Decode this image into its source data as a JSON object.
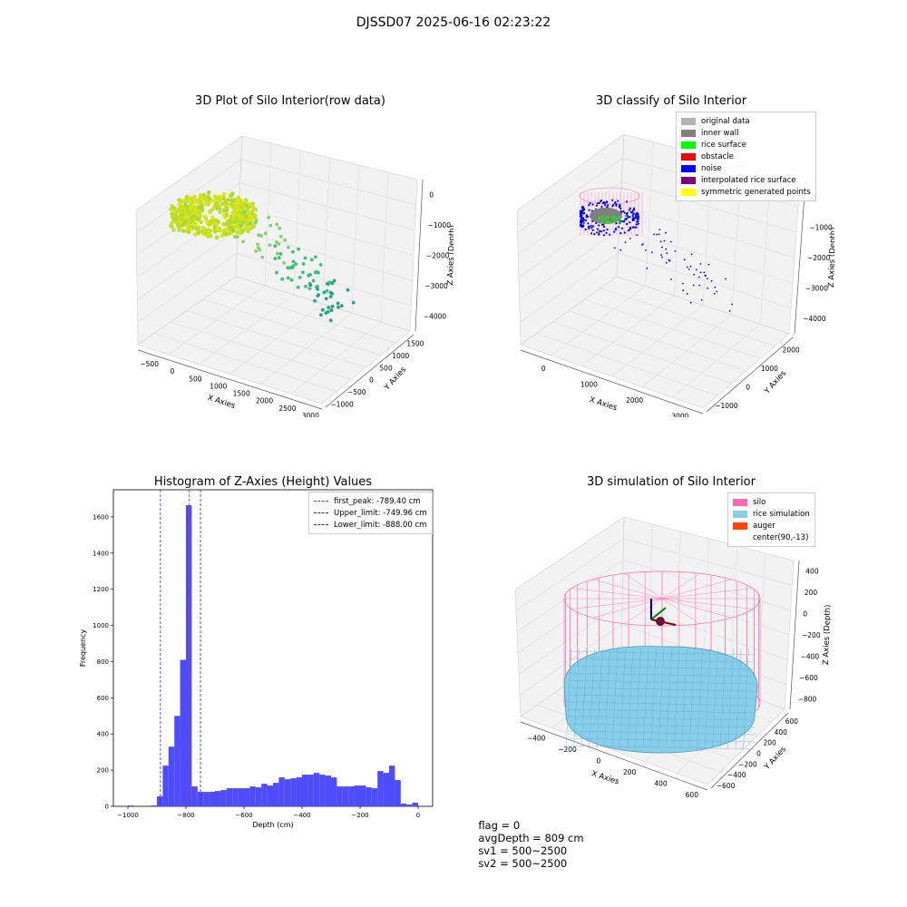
{
  "suptitle": "DJSSD07 2025-06-16 02:23:22",
  "colors": {
    "hist_bar": "#4d4dff",
    "first_peak": "#e03030",
    "limits": "#2b2bbf",
    "silo": "#ff69b4",
    "rice": "#87ceeb",
    "auger": "#ff4500"
  },
  "panels": {
    "raw": {
      "title": "3D Plot of Silo Interior(row data)",
      "xlabel": "X Axies",
      "ylabel": "Y Axies",
      "zlabel": "Z Axies (Depth)",
      "xticks": [
        "−500",
        "0",
        "500",
        "1000",
        "1500",
        "2000",
        "2500",
        "3000"
      ],
      "yticks": [
        "−1000",
        "−500",
        "0",
        "500",
        "1000",
        "1500"
      ],
      "zticks": [
        "0",
        "−1000",
        "−2000",
        "−3000",
        "−4000"
      ]
    },
    "classify": {
      "title": "3D classify of Silo Interior",
      "xlabel": "X Axies",
      "ylabel": "Y Axies",
      "zlabel": "Z Axies (Depth)",
      "xticks": [
        "0",
        "1000",
        "2000",
        "3000"
      ],
      "yticks": [
        "−1000",
        "0",
        "1000",
        "2000"
      ],
      "zticks": [
        "0",
        "−1000",
        "−2000",
        "−3000",
        "−4000"
      ],
      "legend": [
        {
          "label": "original data",
          "color": "#b3b3b3"
        },
        {
          "label": "inner wall",
          "color": "#808080"
        },
        {
          "label": "rice surface",
          "color": "#00ff00"
        },
        {
          "label": "obstacle",
          "color": "#ff0000"
        },
        {
          "label": "noise",
          "color": "#0000ff"
        },
        {
          "label": "interpolated rice surface",
          "color": "#800080"
        },
        {
          "label": "symmetric generated points",
          "color": "#ffff00"
        }
      ]
    },
    "histogram": {
      "title": "Histogram of Z-Axies (Height) Values",
      "xlabel": "Depth (cm)",
      "ylabel": "Frequency",
      "legend": [
        {
          "label": "first_peak: -789.40 cm",
          "color": "#e03030"
        },
        {
          "label": "Upper_limit: -749.96 cm",
          "color": "#2b2bbf"
        },
        {
          "label": "Lower_limit: -888.00 cm",
          "color": "#2b2bbf"
        }
      ]
    },
    "simulation": {
      "title": "3D simulation of Silo Interior",
      "xlabel": "X Axies",
      "ylabel": "Y Axies",
      "zlabel": "Z Axies (Depth)",
      "xticks": [
        "−400",
        "−200",
        "0",
        "200",
        "400",
        "600"
      ],
      "yticks": [
        "−600",
        "−400",
        "−200",
        "0",
        "200",
        "400",
        "600"
      ],
      "zticks": [
        "400",
        "200",
        "0",
        "−200",
        "−400",
        "−600",
        "−800"
      ],
      "legend": [
        {
          "label": "silo",
          "color": "#ff69b4"
        },
        {
          "label": "rice simulation",
          "color": "#87ceeb"
        },
        {
          "label": "auger",
          "color": "#ff4500"
        },
        {
          "label": "center(90,-13)",
          "color": ""
        }
      ]
    }
  },
  "status": {
    "flag": "flag = 0",
    "avg": "avgDepth = 809 cm",
    "sv1": "sv1 = 500~2500",
    "sv2": "sv2 = 500~2500"
  },
  "chart_data": {
    "type": "bar",
    "title": "Histogram of Z-Axies (Height) Values",
    "xlabel": "Depth (cm)",
    "ylabel": "Frequency",
    "xlim": [
      -1050,
      50
    ],
    "ylim": [
      0,
      1750
    ],
    "xticks": [
      -1000,
      -800,
      -600,
      -400,
      -200,
      0
    ],
    "yticks": [
      0,
      200,
      400,
      600,
      800,
      1000,
      1200,
      1400,
      1600
    ],
    "bin_width": 20,
    "bins": [
      {
        "x": -990,
        "value": 5
      },
      {
        "x": -910,
        "value": 5
      },
      {
        "x": -890,
        "value": 55
      },
      {
        "x": -870,
        "value": 225
      },
      {
        "x": -850,
        "value": 330
      },
      {
        "x": -830,
        "value": 500
      },
      {
        "x": -810,
        "value": 810
      },
      {
        "x": -790,
        "value": 1665
      },
      {
        "x": -770,
        "value": 110
      },
      {
        "x": -750,
        "value": 80
      },
      {
        "x": -730,
        "value": 80
      },
      {
        "x": -710,
        "value": 80
      },
      {
        "x": -690,
        "value": 85
      },
      {
        "x": -670,
        "value": 90
      },
      {
        "x": -650,
        "value": 100
      },
      {
        "x": -630,
        "value": 100
      },
      {
        "x": -610,
        "value": 100
      },
      {
        "x": -590,
        "value": 100
      },
      {
        "x": -570,
        "value": 110
      },
      {
        "x": -550,
        "value": 105
      },
      {
        "x": -530,
        "value": 125
      },
      {
        "x": -510,
        "value": 115
      },
      {
        "x": -490,
        "value": 130
      },
      {
        "x": -470,
        "value": 160
      },
      {
        "x": -450,
        "value": 150
      },
      {
        "x": -430,
        "value": 155
      },
      {
        "x": -410,
        "value": 160
      },
      {
        "x": -390,
        "value": 175
      },
      {
        "x": -370,
        "value": 175
      },
      {
        "x": -350,
        "value": 185
      },
      {
        "x": -330,
        "value": 175
      },
      {
        "x": -310,
        "value": 170
      },
      {
        "x": -290,
        "value": 160
      },
      {
        "x": -270,
        "value": 110
      },
      {
        "x": -250,
        "value": 110
      },
      {
        "x": -230,
        "value": 110
      },
      {
        "x": -210,
        "value": 115
      },
      {
        "x": -190,
        "value": 115
      },
      {
        "x": -170,
        "value": 105
      },
      {
        "x": -150,
        "value": 100
      },
      {
        "x": -130,
        "value": 195
      },
      {
        "x": -110,
        "value": 185
      },
      {
        "x": -90,
        "value": 225
      },
      {
        "x": -70,
        "value": 145
      },
      {
        "x": -50,
        "value": 15
      },
      {
        "x": -30,
        "value": 10
      },
      {
        "x": -10,
        "value": 20
      }
    ],
    "vlines": [
      {
        "x": -789.4,
        "kind": "first_peak"
      },
      {
        "x": -749.96,
        "kind": "upper"
      },
      {
        "x": -888.0,
        "kind": "lower"
      }
    ]
  }
}
